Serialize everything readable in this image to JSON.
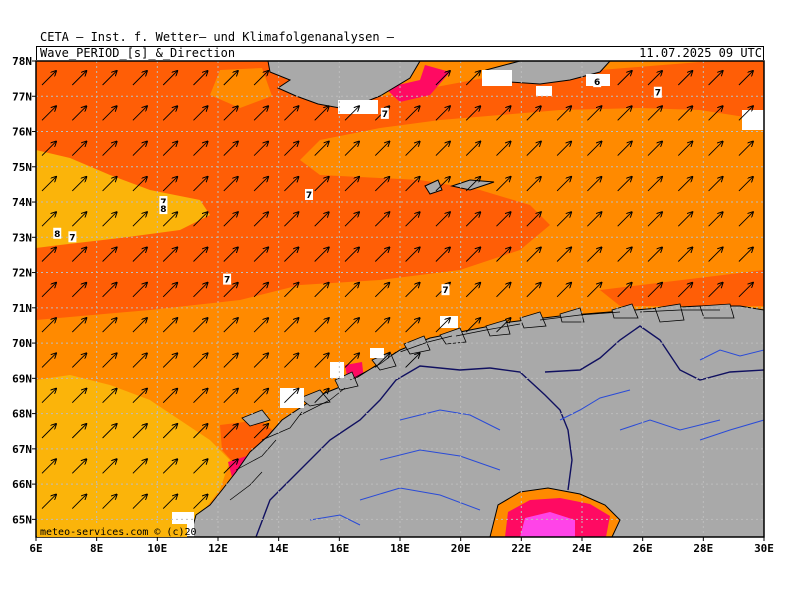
{
  "header": {
    "title": "CETA — Inst. f. Wetter— und Klimafolgenanalysen —",
    "subtitle": "Wave_PERIOD_[s]_&_Direction",
    "timestamp": "11.07.2025 09 UTC",
    "credit": "meteo-services.com © (c)20"
  },
  "map": {
    "lon_range": [
      6,
      30
    ],
    "lat_range": [
      64.5,
      78
    ],
    "lon_ticks": [
      "6E",
      "8E",
      "10E",
      "12E",
      "14E",
      "16E",
      "18E",
      "20E",
      "22E",
      "24E",
      "26E",
      "28E",
      "30E"
    ],
    "lat_ticks": [
      "65N",
      "66N",
      "67N",
      "68N",
      "69N",
      "70N",
      "71N",
      "72N",
      "73N",
      "74N",
      "75N",
      "76N",
      "77N",
      "78N"
    ],
    "grid": "dotted",
    "colors": {
      "period_low": "#fbb40a",
      "period_mid": "#ff8a00",
      "period_high": "#ff5e06",
      "period_max": "#ff0a62",
      "period_extreme": "#ff44e8",
      "land": "#a9a9a9",
      "coast": "#000000",
      "rivers": "#2a4bd7",
      "border": "#101060"
    },
    "arrow_direction": "northeast",
    "contour_labels": [
      {
        "text": "7",
        "lon": 10.2,
        "lat": 74.0
      },
      {
        "text": "8",
        "lon": 10.2,
        "lat": 73.8
      },
      {
        "text": "8",
        "lon": 6.7,
        "lat": 73.1
      },
      {
        "text": "7",
        "lon": 7.2,
        "lat": 73.0
      },
      {
        "text": "7",
        "lon": 15.0,
        "lat": 74.2
      },
      {
        "text": "7",
        "lon": 12.3,
        "lat": 71.8
      },
      {
        "text": "7",
        "lon": 19.5,
        "lat": 71.5
      },
      {
        "text": "7",
        "lon": 17.5,
        "lat": 76.5
      },
      {
        "text": "7",
        "lon": 26.5,
        "lat": 77.1
      },
      {
        "text": "6",
        "lon": 24.5,
        "lat": 77.4
      }
    ]
  }
}
